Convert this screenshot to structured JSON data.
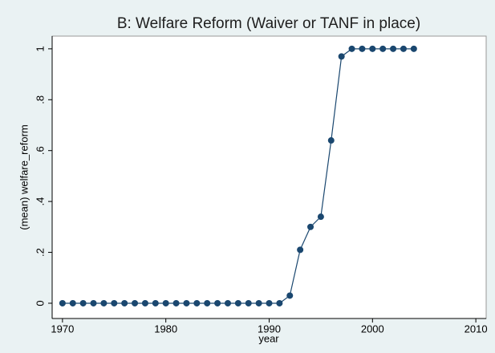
{
  "chart_data": {
    "type": "line",
    "title": "B: Welfare Reform (Waiver or TANF in place)",
    "xlabel": "year",
    "ylabel": "(mean) welfare_reform",
    "x": [
      1970,
      1971,
      1972,
      1973,
      1974,
      1975,
      1976,
      1977,
      1978,
      1979,
      1980,
      1981,
      1982,
      1983,
      1984,
      1985,
      1986,
      1987,
      1988,
      1989,
      1990,
      1991,
      1992,
      1993,
      1994,
      1995,
      1996,
      1997,
      1998,
      1999,
      2000,
      2001,
      2002,
      2003,
      2004
    ],
    "values": [
      0,
      0,
      0,
      0,
      0,
      0,
      0,
      0,
      0,
      0,
      0,
      0,
      0,
      0,
      0,
      0,
      0,
      0,
      0,
      0,
      0,
      0,
      0.03,
      0.21,
      0.3,
      0.34,
      0.64,
      0.97,
      1,
      1,
      1,
      1,
      1,
      1,
      1
    ],
    "color": "#1a476f",
    "xlim": [
      1969,
      2011
    ],
    "xticks": [
      1970,
      1980,
      1990,
      2000,
      2010
    ],
    "ylim": [
      -0.06,
      1.05
    ],
    "yticks": [
      0,
      {
        "value": 0.2,
        "label": ".2"
      },
      {
        "value": 0.4,
        "label": ".4"
      },
      {
        "value": 0.6,
        "label": ".6"
      },
      {
        "value": 0.8,
        "label": ".8"
      },
      1
    ]
  }
}
